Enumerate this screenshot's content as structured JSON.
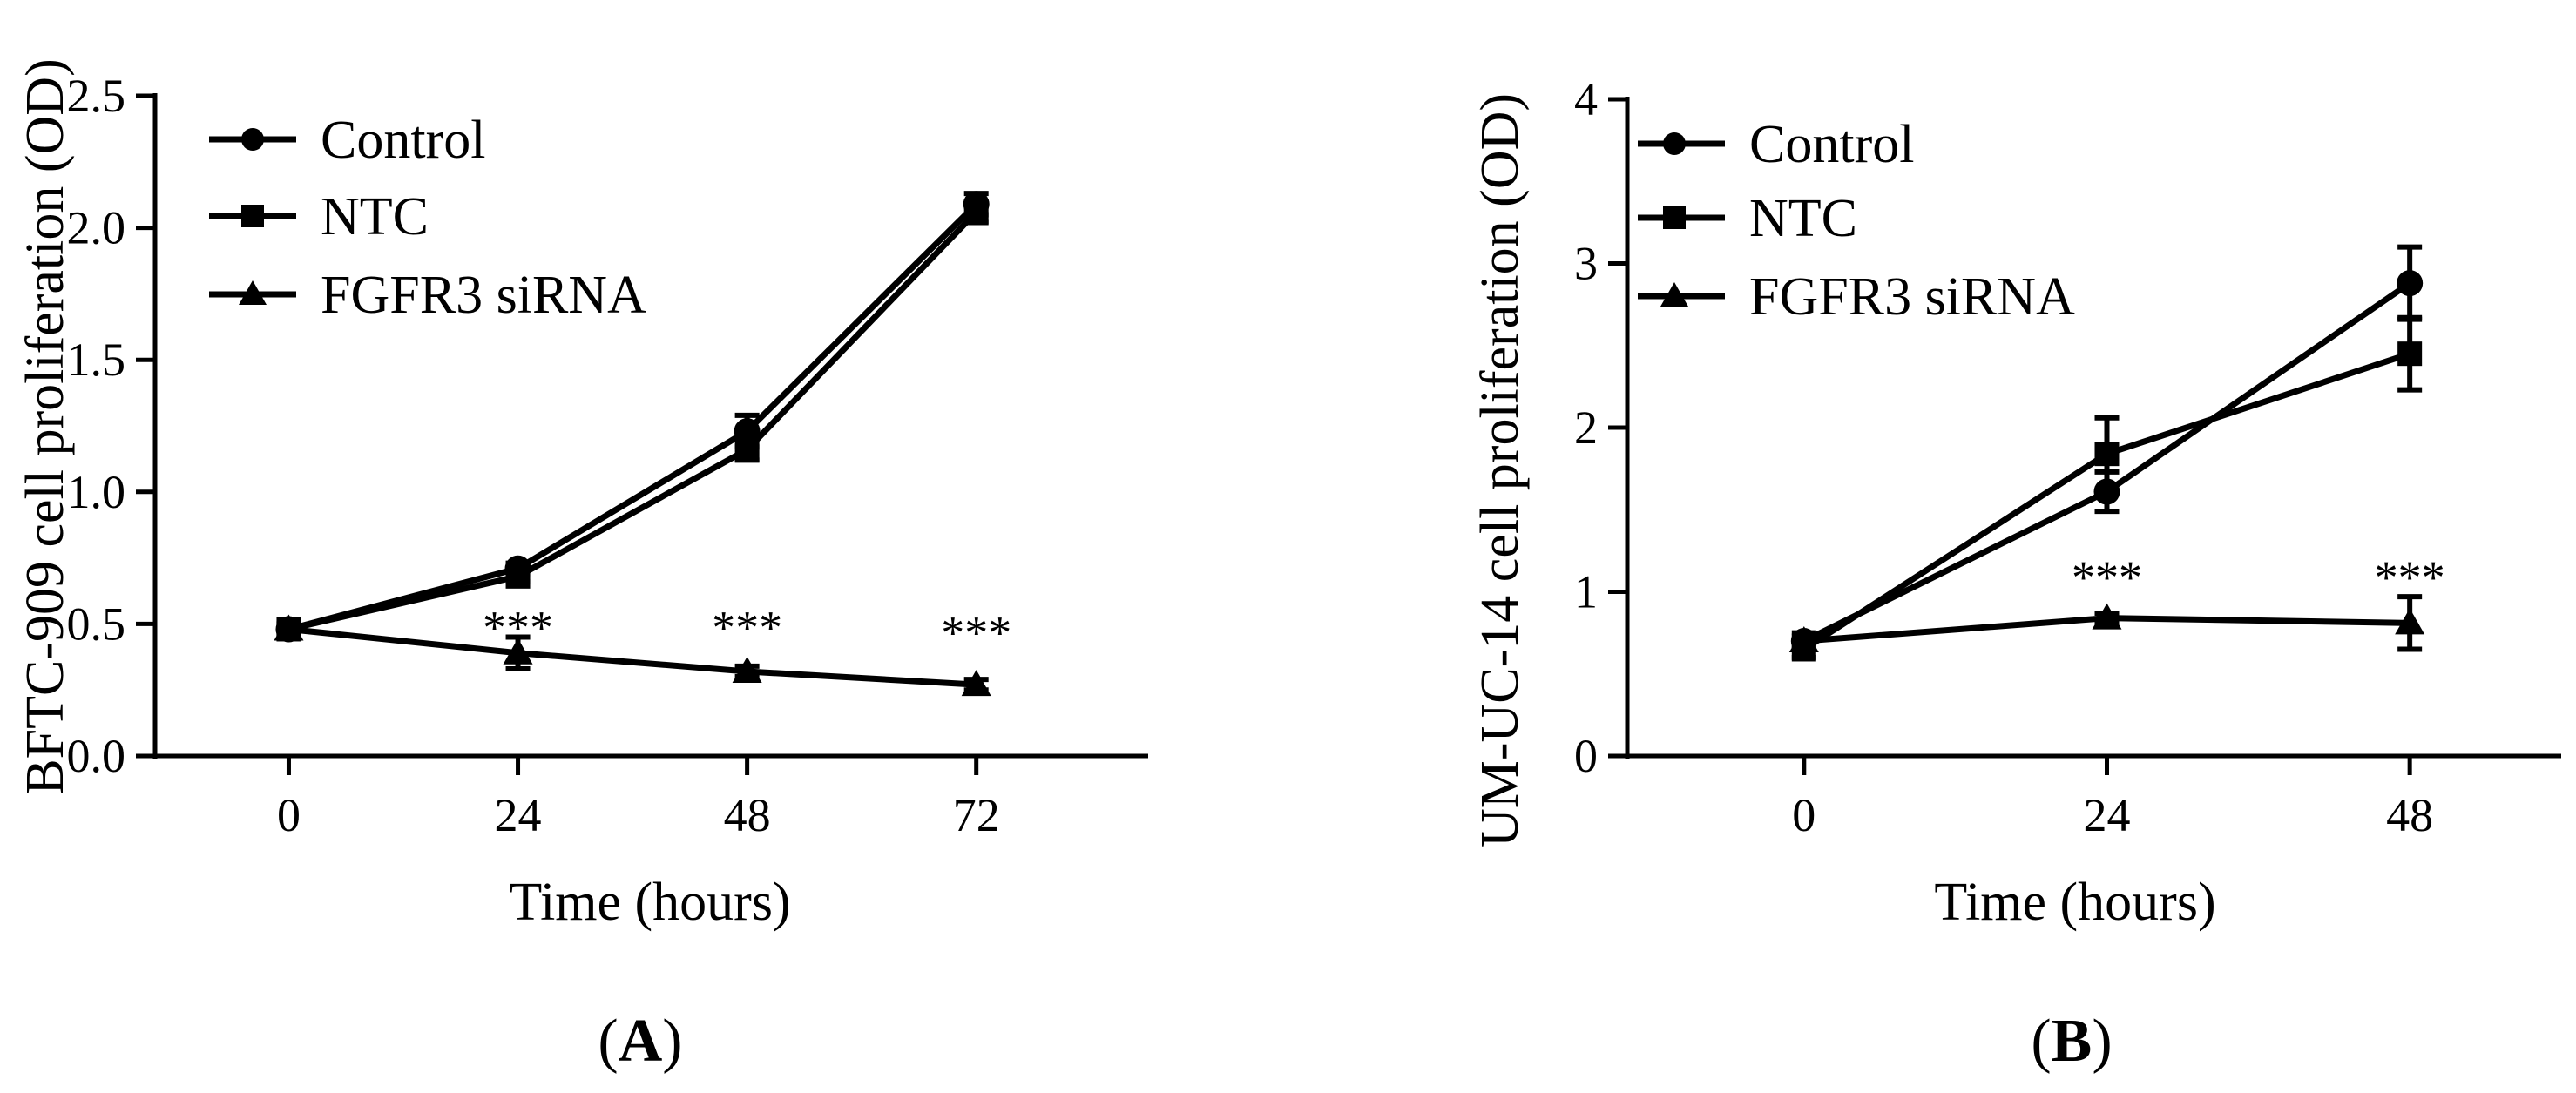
{
  "chart_data": [
    {
      "type": "line",
      "panel_label": "(A)",
      "panel_letter": "A",
      "xlabel": "Time (hours)",
      "ylabel": "BFTC-909 cell proliferation (OD)",
      "x": [
        0,
        24,
        48,
        72
      ],
      "x_tick_labels": [
        "0",
        "24",
        "48",
        "72"
      ],
      "xlim": [
        -14,
        90
      ],
      "ylim": [
        0,
        2.5
      ],
      "y_ticks": [
        0,
        0.5,
        1.0,
        1.5,
        2.0,
        2.5
      ],
      "y_tick_labels": [
        "0.0",
        "0.5",
        "1.0",
        "1.5",
        "2.0",
        "2.5"
      ],
      "grid": false,
      "legend_position": "top-left",
      "series": [
        {
          "name": "Control",
          "marker": "circle",
          "values": [
            0.48,
            0.71,
            1.23,
            2.09
          ],
          "errors": [
            0.02,
            0.02,
            0.06,
            0.04
          ]
        },
        {
          "name": "NTC",
          "marker": "square",
          "values": [
            0.48,
            0.68,
            1.16,
            2.06
          ],
          "errors": [
            0.02,
            0.02,
            0.04,
            0.04
          ]
        },
        {
          "name": "FGFR3 siRNA",
          "marker": "triangle",
          "values": [
            0.48,
            0.39,
            0.32,
            0.27
          ],
          "errors": [
            0.02,
            0.06,
            0.02,
            0.02
          ]
        }
      ],
      "annotations": [
        {
          "x": 24,
          "y": 0.52,
          "text": "***"
        },
        {
          "x": 48,
          "y": 0.52,
          "text": "***"
        },
        {
          "x": 72,
          "y": 0.5,
          "text": "***"
        }
      ]
    },
    {
      "type": "line",
      "panel_label": "(B)",
      "panel_letter": "B",
      "xlabel": "Time (hours)",
      "ylabel": "UM-UC-14 cell proliferation (OD)",
      "x": [
        0,
        24,
        48
      ],
      "x_tick_labels": [
        "0",
        "24",
        "48"
      ],
      "xlim": [
        -14,
        60
      ],
      "ylim": [
        0,
        4
      ],
      "y_ticks": [
        0,
        1,
        2,
        3,
        4
      ],
      "y_tick_labels": [
        "0",
        "1",
        "2",
        "3",
        "4"
      ],
      "grid": false,
      "legend_position": "top-left",
      "series": [
        {
          "name": "Control",
          "marker": "circle",
          "values": [
            0.7,
            1.61,
            2.88
          ],
          "errors": [
            0.05,
            0.12,
            0.22
          ]
        },
        {
          "name": "NTC",
          "marker": "square",
          "values": [
            0.65,
            1.84,
            2.45
          ],
          "errors": [
            0.05,
            0.22,
            0.22
          ]
        },
        {
          "name": "FGFR3 siRNA",
          "marker": "triangle",
          "values": [
            0.7,
            0.84,
            0.81
          ],
          "errors": [
            0.03,
            0.03,
            0.16
          ]
        }
      ],
      "annotations": [
        {
          "x": 24,
          "y": 1.14,
          "text": "***"
        },
        {
          "x": 48,
          "y": 1.14,
          "text": "***"
        }
      ]
    }
  ]
}
